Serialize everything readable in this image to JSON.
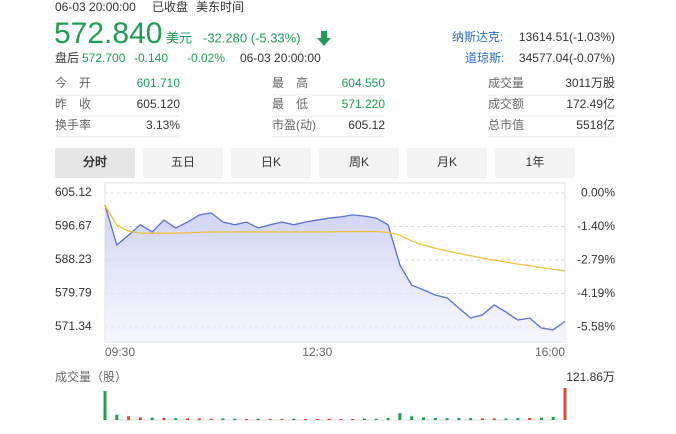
{
  "header": {
    "datetime": "06-03 20:00:00",
    "status": "已收盘",
    "timezone": "美东时间",
    "price": "572.840",
    "currency": "美元",
    "change": "-32.280 (-5.33%)",
    "after_label": "盘后",
    "after_price": "572.700",
    "after_change": "-0.140",
    "after_pct": "-0.02%",
    "after_time": "06-03 20:00:00",
    "indices": [
      {
        "name": "纳斯达克:",
        "value": "13614.51(-1.03%)"
      },
      {
        "name": "道琼斯:",
        "value": "34577.04(-0.07%)"
      }
    ]
  },
  "stats": [
    [
      {
        "label": "今　开",
        "value": "601.710",
        "color": "#1f9d55"
      },
      {
        "label": "最　高",
        "value": "604.550",
        "color": "#1f9d55"
      },
      {
        "label": "成交量",
        "value": "3011万股",
        "color": "#333333"
      }
    ],
    [
      {
        "label": "昨　收",
        "value": "605.120",
        "color": "#333333"
      },
      {
        "label": "最　低",
        "value": "571.220",
        "color": "#1f9d55"
      },
      {
        "label": "成交额",
        "value": "172.49亿",
        "color": "#333333"
      }
    ],
    [
      {
        "label": "换手率",
        "value": "3.13%",
        "color": "#333333"
      },
      {
        "label": "市盈(动)",
        "value": "605.12",
        "color": "#333333"
      },
      {
        "label": "总市值",
        "value": "5518亿",
        "color": "#333333"
      }
    ]
  ],
  "tabs": [
    "分时",
    "五日",
    "日K",
    "周K",
    "月K",
    "1年"
  ],
  "active_tab": 0,
  "chart_data": {
    "type": "line",
    "x": [
      "09:30",
      "09:40",
      "09:50",
      "10:00",
      "10:10",
      "10:20",
      "10:30",
      "10:40",
      "10:50",
      "11:00",
      "11:10",
      "11:20",
      "11:30",
      "11:40",
      "11:50",
      "12:00",
      "12:10",
      "12:20",
      "12:30",
      "12:40",
      "12:50",
      "13:00",
      "13:10",
      "13:20",
      "13:30",
      "13:40",
      "13:50",
      "14:00",
      "14:10",
      "14:20",
      "14:30",
      "14:40",
      "14:50",
      "15:00",
      "15:10",
      "15:20",
      "15:30",
      "15:40",
      "15:50",
      "16:00"
    ],
    "xtick_index": [
      0,
      18,
      39
    ],
    "series": [
      {
        "color": "#5b6fd6",
        "values": [
          602.1,
          592.0,
          594.5,
          597.1,
          595.3,
          598.3,
          596.3,
          597.8,
          599.6,
          600.1,
          597.8,
          597.1,
          597.8,
          596.3,
          597.1,
          597.8,
          597.1,
          597.8,
          598.3,
          598.8,
          599.1,
          599.6,
          599.3,
          598.8,
          597.1,
          587.0,
          581.9,
          580.7,
          579.4,
          578.7,
          576.1,
          573.6,
          574.4,
          576.9,
          575.1,
          573.1,
          573.6,
          571.1,
          570.6,
          572.8
        ]
      },
      {
        "color": "#f0c03c",
        "values": [
          602.0,
          597.0,
          595.5,
          595.0,
          595.0,
          595.0,
          595.0,
          595.1,
          595.2,
          595.3,
          595.3,
          595.3,
          595.3,
          595.3,
          595.3,
          595.3,
          595.3,
          595.3,
          595.3,
          595.3,
          595.4,
          595.4,
          595.4,
          595.4,
          595.2,
          594.5,
          593.0,
          592.0,
          591.2,
          590.5,
          589.9,
          589.3,
          588.7,
          588.2,
          587.7,
          587.2,
          586.8,
          586.3,
          585.9,
          585.5
        ]
      }
    ],
    "ylim": [
      567.56,
      607.64
    ],
    "yticks": [
      605.12,
      596.67,
      588.23,
      579.79,
      571.34
    ],
    "y2lim": [
      -6.2,
      0.42
    ],
    "y2ticks": [
      {
        "value": 0,
        "label": "0.00%"
      },
      {
        "value": -1.4,
        "label": "-1.40%"
      },
      {
        "value": -2.79,
        "label": "-2.79%"
      },
      {
        "value": -4.19,
        "label": "-4.19%"
      },
      {
        "value": -5.58,
        "label": "-5.58%"
      }
    ],
    "grid": true,
    "volume": {
      "label": "成交量（股）",
      "ylim": [
        0,
        121.86
      ],
      "yticks": [
        {
          "value": 121.86,
          "label": "121.86万"
        }
      ],
      "up_color": "#e0463a",
      "down_color": "#1f9d55",
      "values": [
        110,
        20,
        14,
        10,
        9,
        8,
        7,
        6,
        6,
        5,
        6,
        5,
        4,
        5,
        4,
        4,
        5,
        4,
        4,
        5,
        4,
        4,
        5,
        5,
        8,
        26,
        14,
        10,
        8,
        7,
        8,
        7,
        6,
        6,
        6,
        7,
        8,
        9,
        12,
        121.86
      ]
    }
  }
}
